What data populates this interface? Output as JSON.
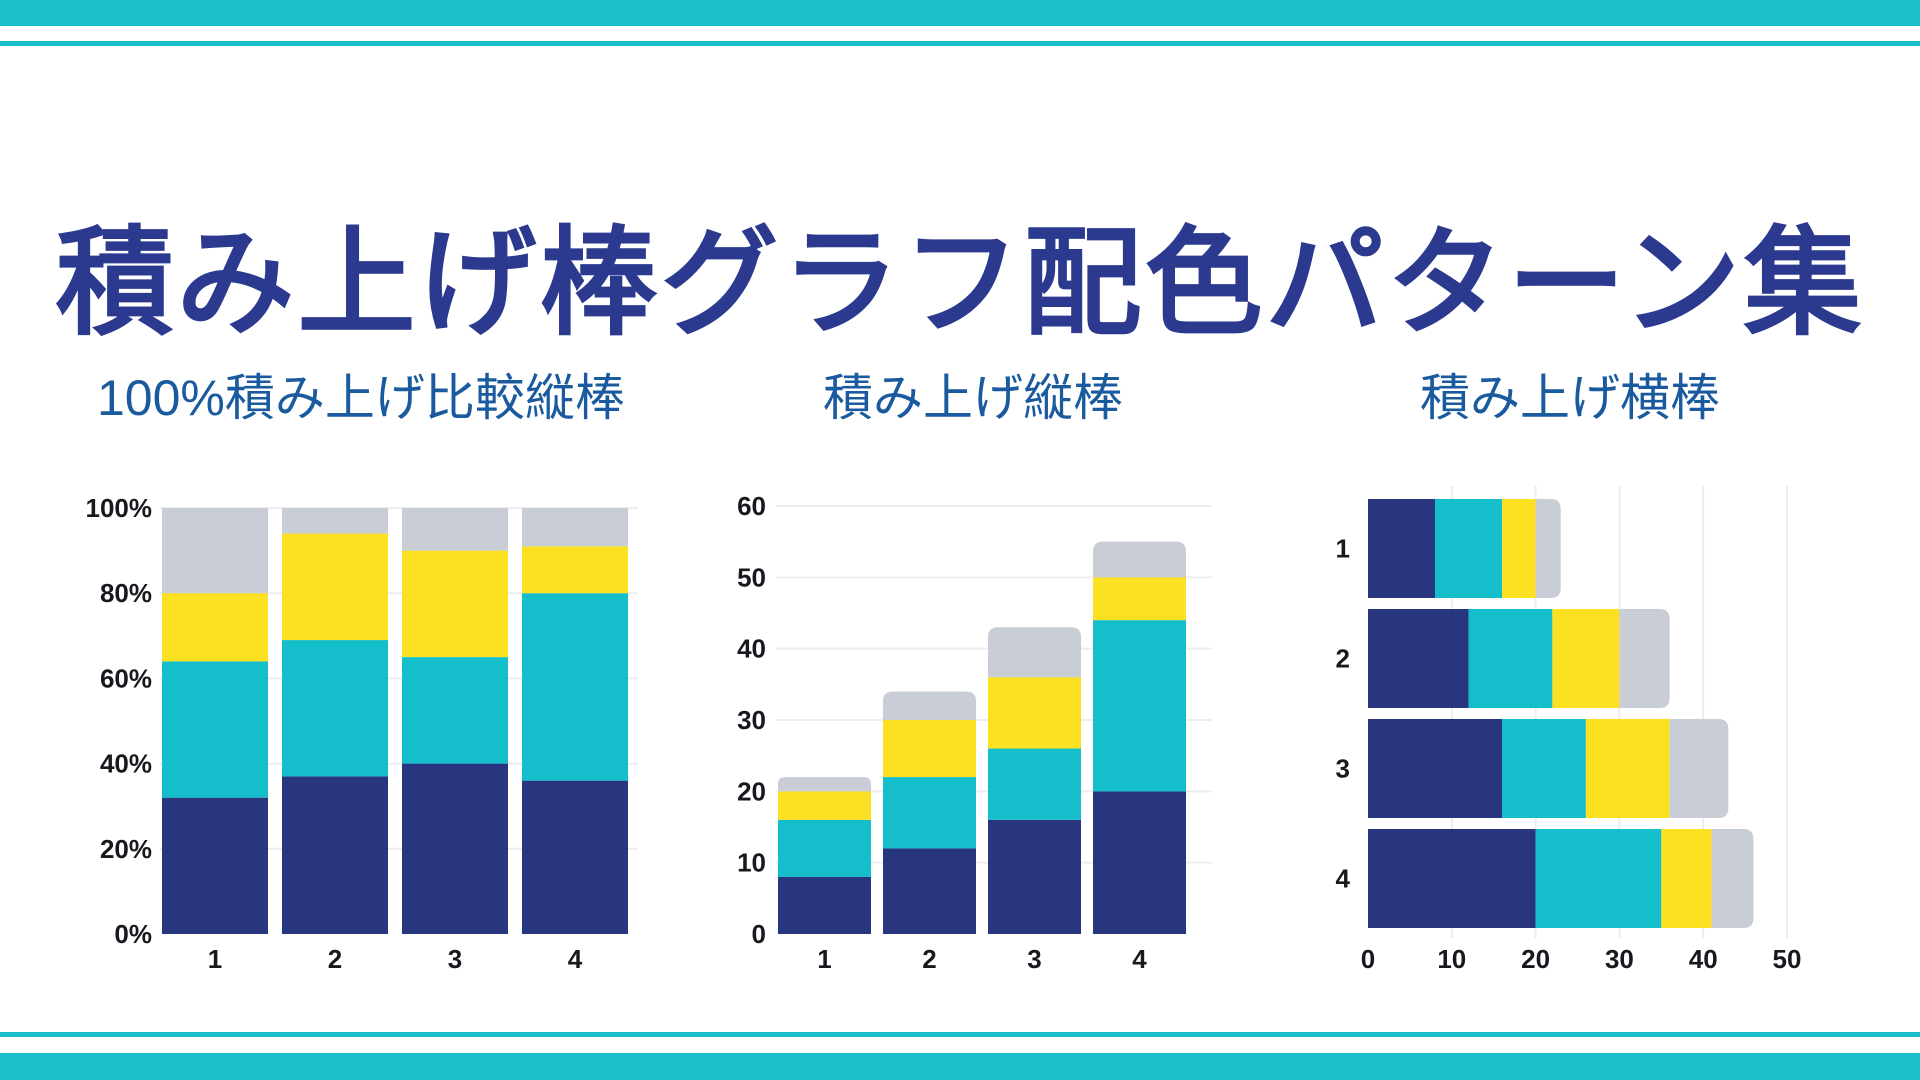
{
  "page": {
    "title": "積み上げ棒グラフ配色パターン集",
    "colors": {
      "background": "#ffffff",
      "accent_teal": "#1ABFCB",
      "title_navy": "#2B3A8F",
      "subtitle_blue": "#1A5A9E",
      "tick_text": "#17191E",
      "gridline": "#EDEDF1"
    }
  },
  "palette": {
    "navy": "#27367F",
    "cyan": "#15BECB",
    "yellow": "#FBE122",
    "gray": "#C9CDD5"
  },
  "chart_data": [
    {
      "type": "bar",
      "variant": "100-percent-stacked-column",
      "title": "100%積み上げ比較縦棒",
      "categories": [
        "1",
        "2",
        "3",
        "4"
      ],
      "series": [
        {
          "name": "navy",
          "color": "#27367F",
          "values": [
            32,
            37,
            40,
            36
          ]
        },
        {
          "name": "cyan",
          "color": "#15BECB",
          "values": [
            32,
            32,
            25,
            44
          ]
        },
        {
          "name": "yellow",
          "color": "#FBE122",
          "values": [
            16,
            25,
            25,
            11
          ]
        },
        {
          "name": "gray",
          "color": "#C9CDD5",
          "values": [
            20,
            6,
            10,
            9
          ]
        }
      ],
      "ylim": [
        0,
        100
      ],
      "ytick_values": [
        0,
        20,
        40,
        60,
        80,
        100
      ],
      "ytick_labels": [
        "0%",
        "20%",
        "40%",
        "60%",
        "80%",
        "100%"
      ],
      "grid": "horizontal",
      "legend": "none"
    },
    {
      "type": "bar",
      "variant": "stacked-column",
      "title": "積み上げ縦棒",
      "categories": [
        "1",
        "2",
        "3",
        "4"
      ],
      "series": [
        {
          "name": "navy",
          "color": "#27367F",
          "values": [
            8,
            12,
            16,
            20
          ]
        },
        {
          "name": "cyan",
          "color": "#15BECB",
          "values": [
            8,
            10,
            10,
            24
          ]
        },
        {
          "name": "yellow",
          "color": "#FBE122",
          "values": [
            4,
            8,
            10,
            6
          ]
        },
        {
          "name": "gray",
          "color": "#C9CDD5",
          "values": [
            2,
            4,
            7,
            5
          ]
        }
      ],
      "totals": [
        22,
        34,
        43,
        55
      ],
      "ylim": [
        0,
        60
      ],
      "ytick_values": [
        0,
        10,
        20,
        30,
        40,
        50,
        60
      ],
      "ytick_labels": [
        "0",
        "10",
        "20",
        "30",
        "40",
        "50",
        "60"
      ],
      "grid": "horizontal",
      "legend": "none"
    },
    {
      "type": "bar",
      "variant": "stacked-bar-horizontal",
      "title": "積み上げ横棒",
      "categories": [
        "1",
        "2",
        "3",
        "4"
      ],
      "series": [
        {
          "name": "navy",
          "color": "#27367F",
          "values": [
            8,
            12,
            16,
            20
          ]
        },
        {
          "name": "cyan",
          "color": "#15BECB",
          "values": [
            8,
            10,
            10,
            15
          ]
        },
        {
          "name": "yellow",
          "color": "#FBE122",
          "values": [
            4,
            8,
            10,
            6
          ]
        },
        {
          "name": "gray",
          "color": "#C9CDD5",
          "values": [
            3,
            6,
            7,
            5
          ]
        }
      ],
      "totals": [
        23,
        36,
        43,
        46
      ],
      "xlim": [
        0,
        50
      ],
      "xtick_values": [
        0,
        10,
        20,
        30,
        40,
        50
      ],
      "xtick_labels": [
        "0",
        "10",
        "20",
        "30",
        "40",
        "50"
      ],
      "grid": "vertical",
      "legend": "none"
    }
  ]
}
